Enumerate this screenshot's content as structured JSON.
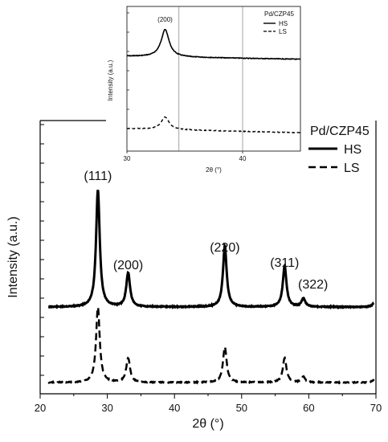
{
  "chart_data": [
    {
      "type": "line",
      "xlabel": "2θ (°)",
      "ylabel": "Intensity (a.u.)",
      "xlim": [
        20,
        70
      ],
      "xticks": [
        20,
        30,
        40,
        50,
        60,
        70
      ],
      "y_ticks_labeled": false,
      "grid": false,
      "legend": {
        "title": "Pd/CZP45",
        "position": "top-right",
        "entries": [
          "HS",
          "LS"
        ]
      },
      "annotations": [
        {
          "label": "(111)",
          "x": 28.6
        },
        {
          "label": "(200)",
          "x": 33.1
        },
        {
          "label": "(220)",
          "x": 47.5
        },
        {
          "label": "(311)",
          "x": 56.4
        },
        {
          "label": "(322)",
          "x": 59.2
        }
      ],
      "series": [
        {
          "name": "HS",
          "style": "solid",
          "peaks": [
            [
              28.6,
              1.0
            ],
            [
              33.1,
              0.29
            ],
            [
              47.5,
              0.52
            ],
            [
              56.4,
              0.35
            ],
            [
              59.2,
              0.07
            ],
            [
              69.8,
              0.04
            ]
          ],
          "baseline": 0.0
        },
        {
          "name": "LS",
          "style": "dashed",
          "peaks": [
            [
              28.6,
              0.68
            ],
            [
              33.1,
              0.22
            ],
            [
              47.5,
              0.32
            ],
            [
              56.4,
              0.22
            ],
            [
              59.2,
              0.05
            ],
            [
              69.8,
              0.03
            ]
          ],
          "baseline": 0.0
        }
      ]
    },
    {
      "type": "line",
      "inset": true,
      "xlabel": "2θ (°)",
      "ylabel": "Intensity (a.u.)",
      "xlim": [
        30,
        45
      ],
      "xticks": [
        30,
        40
      ],
      "reference_lines_x": [
        34.5,
        40
      ],
      "legend": {
        "title": "Pd/CZP45",
        "position": "top-right",
        "entries": [
          "HS",
          "LS"
        ]
      },
      "annotations": [
        {
          "label": "(200)",
          "x": 33.3
        }
      ],
      "series": [
        {
          "name": "HS",
          "style": "solid",
          "peaks": [
            [
              33.3,
              1.0
            ]
          ]
        },
        {
          "name": "LS",
          "style": "dashed",
          "peaks": [
            [
              33.3,
              0.55
            ]
          ]
        }
      ]
    }
  ]
}
